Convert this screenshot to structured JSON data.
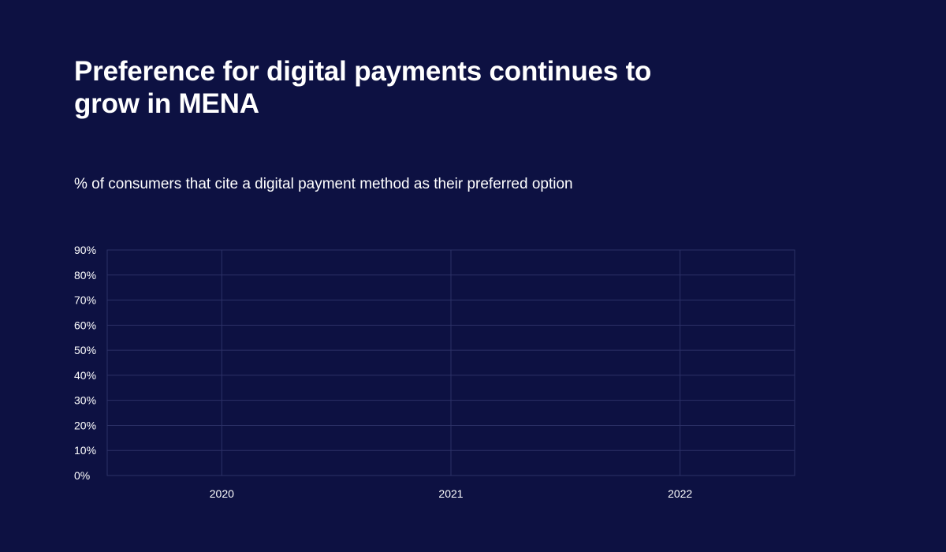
{
  "title": "Preference for digital payments continues to grow in MENA",
  "subtitle": "% of consumers that cite a digital payment method as their preferred option",
  "colors": {
    "background": "#0d1142",
    "text": "#ffffff",
    "grid": "#2c3166"
  },
  "chart_data": {
    "type": "bar",
    "title": "",
    "xlabel": "",
    "ylabel": "",
    "categories": [
      "2020",
      "2021",
      "2022"
    ],
    "series": [],
    "ylim": [
      0,
      90
    ],
    "yticks": [
      "0%",
      "10%",
      "20%",
      "30%",
      "40%",
      "50%",
      "60%",
      "70%",
      "80%",
      "90%"
    ],
    "grid": true,
    "legend": "none"
  }
}
